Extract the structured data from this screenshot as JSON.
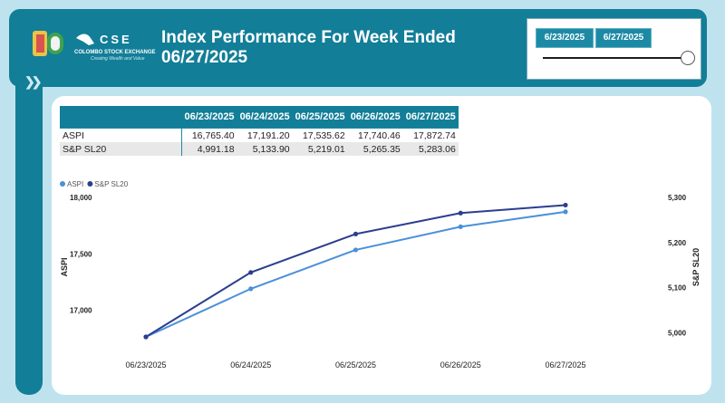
{
  "header": {
    "title_line1": "Index Performance For Week Ended",
    "title_line2": "06/27/2025",
    "logo_letters": "CSE",
    "logo_name": "COLOMBO STOCK EXCHANGE",
    "logo_tagline": "Creating Wealth and Value"
  },
  "date_range": {
    "start": "6/23/2025",
    "end": "6/27/2025"
  },
  "table": {
    "columns": [
      "06/23/2025",
      "06/24/2025",
      "06/25/2025",
      "06/26/2025",
      "06/27/2025"
    ],
    "rows": [
      {
        "label": "ASPI",
        "values": [
          "16,765.40",
          "17,191.20",
          "17,535.62",
          "17,740.46",
          "17,872.74"
        ]
      },
      {
        "label": "S&P SL20",
        "values": [
          "4,991.18",
          "5,133.90",
          "5,219.01",
          "5,265.35",
          "5,283.06"
        ]
      }
    ]
  },
  "chart_data": {
    "type": "line",
    "categories": [
      "06/23/2025",
      "06/24/2025",
      "06/25/2025",
      "06/26/2025",
      "06/27/2025"
    ],
    "series": [
      {
        "name": "ASPI",
        "axis": "left",
        "color": "#4a90d9",
        "values": [
          16765.4,
          17191.2,
          17535.62,
          17740.46,
          17872.74
        ]
      },
      {
        "name": "S&P SL20",
        "axis": "right",
        "color": "#2c3e8f",
        "values": [
          4991.18,
          5133.9,
          5219.01,
          5265.35,
          5283.06
        ]
      }
    ],
    "ylabel": "ASPI",
    "y2label": "S&P SL20",
    "ylim": [
      16765.4,
      18000
    ],
    "y2lim": [
      4991.18,
      5300
    ],
    "yticks": [
      17000,
      17500,
      18000
    ],
    "yticklabels": [
      "17,000",
      "17,500",
      "18,000"
    ],
    "y2ticks": [
      5000,
      5100,
      5200,
      5300
    ],
    "y2ticklabels": [
      "5,000",
      "5,100",
      "5,200",
      "5,300"
    ],
    "legend": "top-left",
    "grid": false
  }
}
